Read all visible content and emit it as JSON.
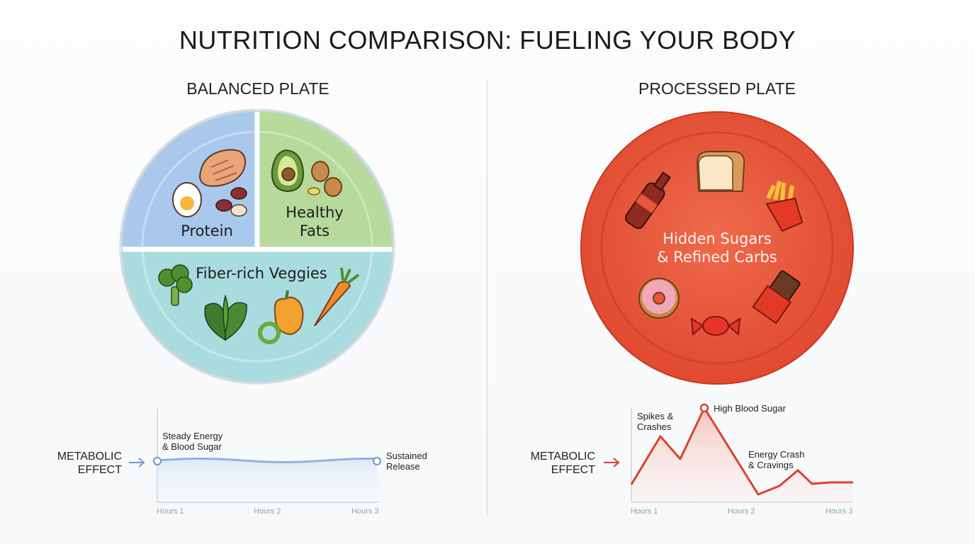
{
  "title": "NUTRITION COMPARISON: FUELING YOUR BODY",
  "balanced": {
    "heading": "BALANCED PLATE",
    "sections": {
      "protein": "Protein",
      "fats_line1": "Healthy",
      "fats_line2": "Fats",
      "veggies": "Fiber-rich Veggies"
    },
    "metabolic_line1": "METABOLIC",
    "metabolic_line2": "EFFECT",
    "note_start_line1": "Steady Energy",
    "note_start_line2": "& Blood Sugar",
    "note_end_line1": "Sustained",
    "note_end_line2": "Release",
    "ticks": [
      "Hours 1",
      "Hours 2",
      "Hours 3"
    ]
  },
  "processed": {
    "heading": "PROCESSED PLATE",
    "center_line1": "Hidden Sugars",
    "center_line2": "& Refined Carbs",
    "metabolic_line1": "METABOLIC",
    "metabolic_line2": "EFFECT",
    "note_spikes_line1": "Spikes &",
    "note_spikes_line2": "Crashes",
    "note_peak": "High Blood Sugar",
    "note_crash_line1": "Energy Crash",
    "note_crash_line2": "& Cravings",
    "ticks": [
      "Hours 1",
      "Hours 2",
      "Hours 3"
    ]
  },
  "colors": {
    "protein": "#a9c8ec",
    "fats": "#b7d99b",
    "veggies": "#a9dcdf",
    "processed": "#e8553a",
    "steady_line": "#8fb2e0",
    "spike_line": "#d9432c"
  },
  "icons": {
    "balanced": [
      "chicken-breast-icon",
      "egg-icon",
      "beans-icon",
      "avocado-icon",
      "walnut-icon",
      "broccoli-icon",
      "spinach-icon",
      "bell-pepper-icon",
      "carrot-icon"
    ],
    "processed": [
      "soda-bottle-icon",
      "bread-icon",
      "fries-icon",
      "donut-icon",
      "candy-icon",
      "chocolate-bar-icon"
    ]
  }
}
